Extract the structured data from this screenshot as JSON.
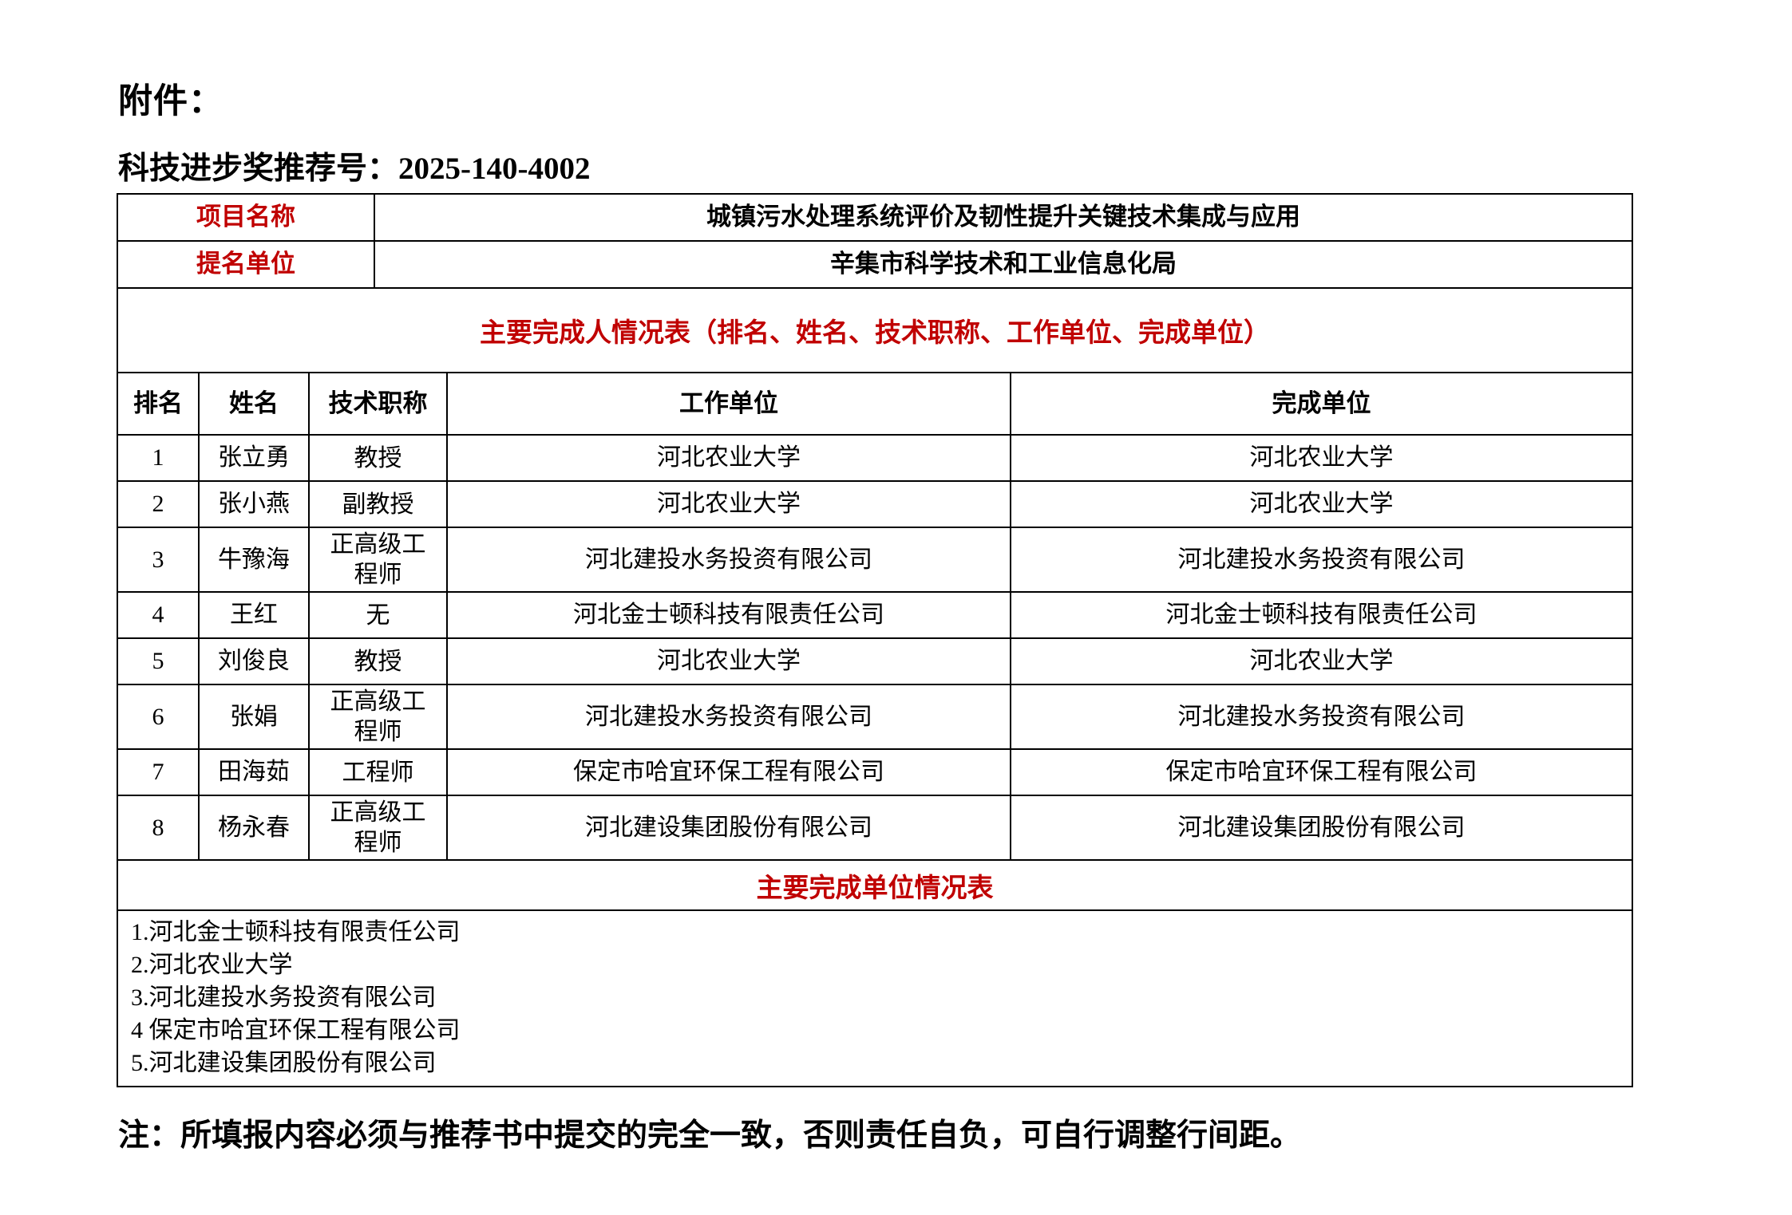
{
  "page": {
    "attachment_label": "附件：",
    "recommendation_label": "科技进步奖推荐号：",
    "recommendation_number": "2025-140-4002",
    "note": "注：所填报内容必须与推荐书中提交的完全一致，否则责任自负，可自行调整行间距。"
  },
  "colors": {
    "accent_red": "#c00000",
    "border_black": "#000000",
    "background": "#ffffff"
  },
  "info_table": {
    "rows": [
      {
        "label": "项目名称",
        "value": "城镇污水处理系统评价及韧性提升关键技术集成与应用"
      },
      {
        "label": "提名单位",
        "value": "辛集市科学技术和工业信息化局"
      }
    ]
  },
  "completers_table": {
    "title": "主要完成人情况表（排名、姓名、技术职称、工作单位、完成单位）",
    "headers": [
      "排名",
      "姓名",
      "技术职称",
      "工作单位",
      "完成单位"
    ],
    "rows": [
      {
        "rank": "1",
        "name": "张立勇",
        "title": "教授",
        "work_unit": "河北农业大学",
        "completion_unit": "河北农业大学"
      },
      {
        "rank": "2",
        "name": "张小燕",
        "title": "副教授",
        "work_unit": "河北农业大学",
        "completion_unit": "河北农业大学"
      },
      {
        "rank": "3",
        "name": "牛豫海",
        "title": "正高级工程师",
        "work_unit": "河北建投水务投资有限公司",
        "completion_unit": "河北建投水务投资有限公司"
      },
      {
        "rank": "4",
        "name": "王红",
        "title": "无",
        "work_unit": "河北金士顿科技有限责任公司",
        "completion_unit": "河北金士顿科技有限责任公司"
      },
      {
        "rank": "5",
        "name": "刘俊良",
        "title": "教授",
        "work_unit": "河北农业大学",
        "completion_unit": "河北农业大学"
      },
      {
        "rank": "6",
        "name": "张娟",
        "title": "正高级工程师",
        "work_unit": "河北建投水务投资有限公司",
        "completion_unit": "河北建投水务投资有限公司"
      },
      {
        "rank": "7",
        "name": "田海茹",
        "title": "工程师",
        "work_unit": "保定市哈宜环保工程有限公司",
        "completion_unit": "保定市哈宜环保工程有限公司"
      },
      {
        "rank": "8",
        "name": "杨永春",
        "title": "正高级工程师",
        "work_unit": "河北建设集团股份有限公司",
        "completion_unit": "河北建设集团股份有限公司"
      }
    ]
  },
  "unit_table": {
    "title": "主要完成单位情况表",
    "units": [
      "1.河北金士顿科技有限责任公司",
      "2.河北农业大学",
      "3.河北建投水务投资有限公司",
      "4 保定市哈宜环保工程有限公司",
      "5.河北建设集团股份有限公司"
    ]
  }
}
